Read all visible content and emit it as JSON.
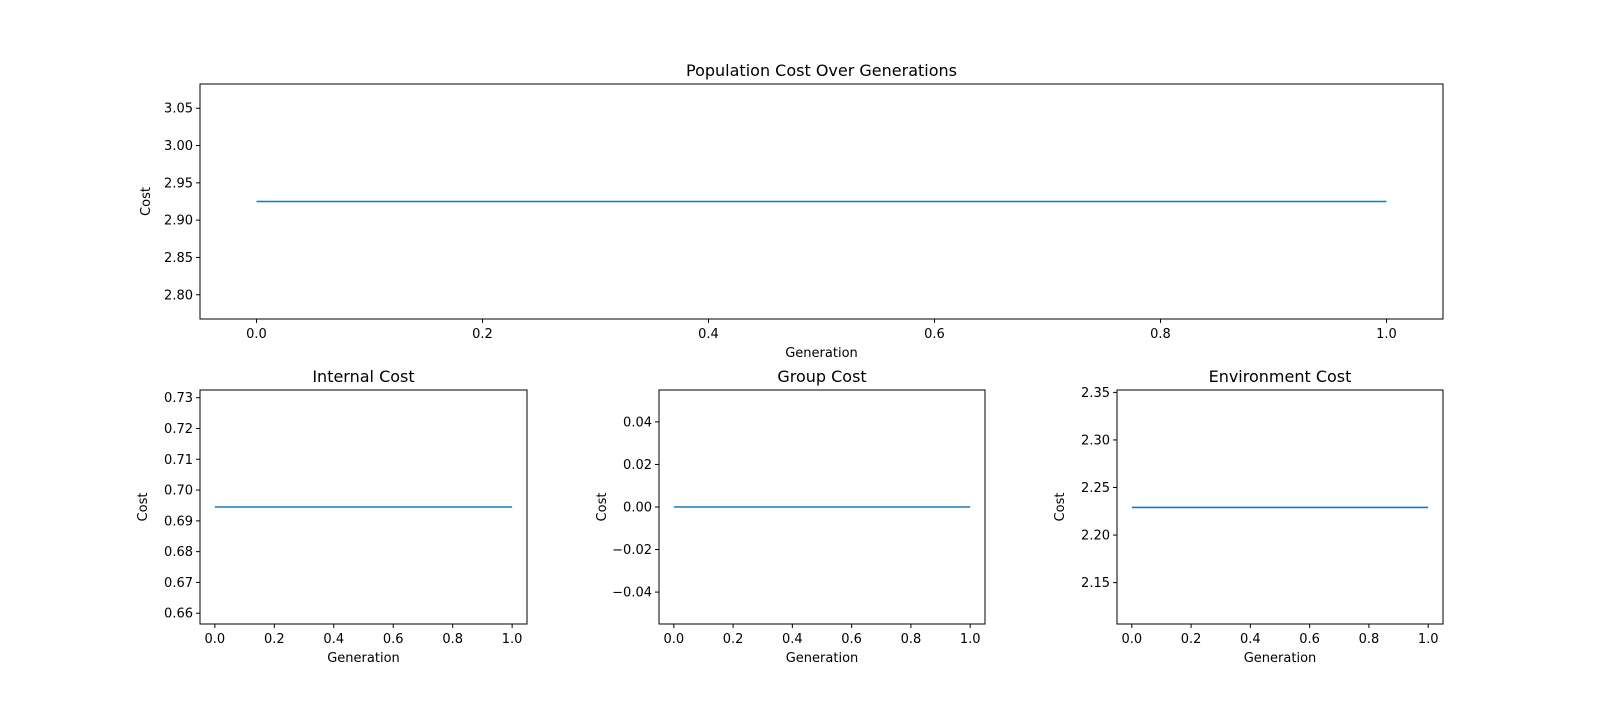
{
  "chart_data": [
    {
      "type": "line",
      "title": "Population Cost Over Generations",
      "xlabel": "Generation",
      "ylabel": "Cost",
      "xlim": [
        -0.05,
        1.05
      ],
      "ylim": [
        2.7675,
        3.0825
      ],
      "xticks": [
        0.0,
        0.2,
        0.4,
        0.6,
        0.8,
        1.0
      ],
      "xtick_labels": [
        "0.0",
        "0.2",
        "0.4",
        "0.6",
        "0.8",
        "1.0"
      ],
      "yticks": [
        2.8,
        2.85,
        2.9,
        2.95,
        3.0,
        3.05
      ],
      "ytick_labels": [
        "2.80",
        "2.85",
        "2.90",
        "2.95",
        "3.00",
        "3.05"
      ],
      "grid": false,
      "series": [
        {
          "x": [
            0,
            1
          ],
          "values": [
            2.925,
            2.925
          ]
        }
      ]
    },
    {
      "type": "line",
      "title": "Internal Cost",
      "xlabel": "Generation",
      "ylabel": "Cost",
      "xlim": [
        -0.05,
        1.05
      ],
      "ylim": [
        0.6565,
        0.7325
      ],
      "xticks": [
        0.0,
        0.2,
        0.4,
        0.6,
        0.8,
        1.0
      ],
      "xtick_labels": [
        "0.0",
        "0.2",
        "0.4",
        "0.6",
        "0.8",
        "1.0"
      ],
      "yticks": [
        0.66,
        0.67,
        0.68,
        0.69,
        0.7,
        0.71,
        0.72,
        0.73
      ],
      "ytick_labels": [
        "0.66",
        "0.67",
        "0.68",
        "0.69",
        "0.70",
        "0.71",
        "0.72",
        "0.73"
      ],
      "grid": false,
      "series": [
        {
          "x": [
            0,
            1
          ],
          "values": [
            0.6945,
            0.6945
          ]
        }
      ]
    },
    {
      "type": "line",
      "title": "Group Cost",
      "xlabel": "Generation",
      "ylabel": "Cost",
      "xlim": [
        -0.05,
        1.05
      ],
      "ylim": [
        -0.055,
        0.055
      ],
      "xticks": [
        0.0,
        0.2,
        0.4,
        0.6,
        0.8,
        1.0
      ],
      "xtick_labels": [
        "0.0",
        "0.2",
        "0.4",
        "0.6",
        "0.8",
        "1.0"
      ],
      "yticks": [
        -0.04,
        -0.02,
        0.0,
        0.02,
        0.04
      ],
      "ytick_labels": [
        "−0.04",
        "−0.02",
        "0.00",
        "0.02",
        "0.04"
      ],
      "grid": false,
      "series": [
        {
          "x": [
            0,
            1
          ],
          "values": [
            0.0,
            0.0
          ]
        }
      ]
    },
    {
      "type": "line",
      "title": "Environment Cost",
      "xlabel": "Generation",
      "ylabel": "Cost",
      "xlim": [
        -0.05,
        1.05
      ],
      "ylim": [
        2.1065,
        2.3525
      ],
      "xticks": [
        0.0,
        0.2,
        0.4,
        0.6,
        0.8,
        1.0
      ],
      "xtick_labels": [
        "0.0",
        "0.2",
        "0.4",
        "0.6",
        "0.8",
        "1.0"
      ],
      "yticks": [
        2.15,
        2.2,
        2.25,
        2.3,
        2.35
      ],
      "ytick_labels": [
        "2.15",
        "2.20",
        "2.25",
        "2.30",
        "2.35"
      ],
      "grid": false,
      "series": [
        {
          "x": [
            0,
            1
          ],
          "values": [
            2.229,
            2.229
          ]
        }
      ]
    }
  ],
  "colors": {
    "line": "#1f77b4",
    "axes": "#000000",
    "background": "#ffffff"
  }
}
